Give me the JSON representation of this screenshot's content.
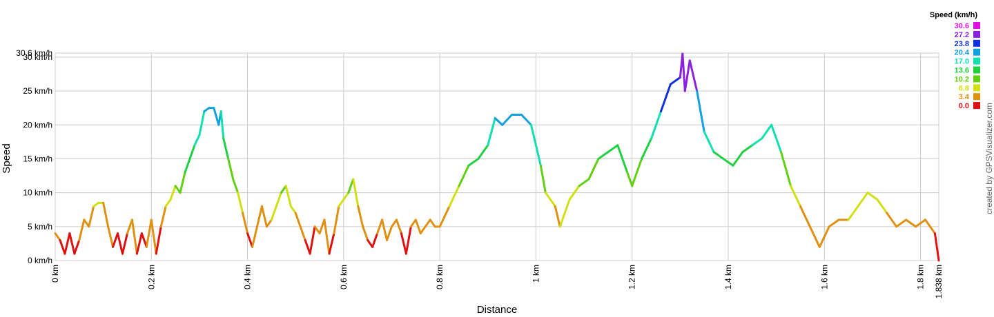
{
  "chart_data": {
    "type": "line",
    "x_label": "Distance",
    "y_label": "Speed",
    "credit": "created by GPSVisualizer.com",
    "legend_title": "Speed (km/h)",
    "legend": [
      {
        "value": 30.6,
        "color": "#e010e0"
      },
      {
        "value": 27.2,
        "color": "#8a20e0"
      },
      {
        "value": 23.8,
        "color": "#1030e0"
      },
      {
        "value": 20.4,
        "color": "#10a0e0"
      },
      {
        "value": 17.0,
        "label": "17.0",
        "color": "#10e0b0"
      },
      {
        "value": 13.6,
        "color": "#20d040"
      },
      {
        "value": 10.2,
        "color": "#60d010"
      },
      {
        "value": 6.8,
        "color": "#d0e010"
      },
      {
        "value": 3.4,
        "color": "#e09010"
      },
      {
        "value": 0.0,
        "label": "0.0",
        "color": "#e01010"
      }
    ],
    "xlim": [
      0,
      1.838
    ],
    "ylim": [
      0,
      30.6
    ],
    "xticks": [
      {
        "value": 0,
        "label": "0 km"
      },
      {
        "value": 0.2,
        "label": "0.2 km"
      },
      {
        "value": 0.4,
        "label": "0.4 km"
      },
      {
        "value": 0.6,
        "label": "0.6 km"
      },
      {
        "value": 0.8,
        "label": "0.8 km"
      },
      {
        "value": 1,
        "label": "1 km"
      },
      {
        "value": 1.2,
        "label": "1.2 km"
      },
      {
        "value": 1.4,
        "label": "1.4 km"
      },
      {
        "value": 1.6,
        "label": "1.6 km"
      },
      {
        "value": 1.8,
        "label": "1.8 km"
      },
      {
        "value": 1.838,
        "label": "1.838 km"
      }
    ],
    "yticks": [
      {
        "value": 0,
        "label": "0 km/h"
      },
      {
        "value": 5,
        "label": "5 km/h"
      },
      {
        "value": 10,
        "label": "10 km/h"
      },
      {
        "value": 15,
        "label": "15 km/h"
      },
      {
        "value": 20,
        "label": "20 km/h"
      },
      {
        "value": 25,
        "label": "25 km/h"
      },
      {
        "value": 30,
        "label": "30 km/h"
      },
      {
        "value": 30.6,
        "label": "30.6 km/h"
      }
    ],
    "grid": true,
    "x": [
      0,
      0.01,
      0.02,
      0.03,
      0.04,
      0.05,
      0.06,
      0.07,
      0.08,
      0.09,
      0.1,
      0.11,
      0.12,
      0.13,
      0.14,
      0.15,
      0.16,
      0.17,
      0.18,
      0.19,
      0.2,
      0.21,
      0.22,
      0.23,
      0.24,
      0.25,
      0.26,
      0.27,
      0.28,
      0.29,
      0.3,
      0.31,
      0.32,
      0.33,
      0.34,
      0.345,
      0.35,
      0.36,
      0.37,
      0.38,
      0.39,
      0.4,
      0.41,
      0.42,
      0.43,
      0.44,
      0.45,
      0.46,
      0.47,
      0.48,
      0.49,
      0.5,
      0.51,
      0.52,
      0.53,
      0.54,
      0.55,
      0.56,
      0.57,
      0.58,
      0.59,
      0.6,
      0.61,
      0.62,
      0.63,
      0.64,
      0.65,
      0.66,
      0.67,
      0.68,
      0.69,
      0.7,
      0.71,
      0.72,
      0.73,
      0.74,
      0.75,
      0.76,
      0.77,
      0.78,
      0.79,
      0.8,
      0.82,
      0.84,
      0.86,
      0.88,
      0.9,
      0.915,
      0.93,
      0.95,
      0.97,
      0.99,
      1.01,
      1.02,
      1.04,
      1.05,
      1.07,
      1.09,
      1.11,
      1.13,
      1.15,
      1.17,
      1.19,
      1.2,
      1.22,
      1.24,
      1.26,
      1.28,
      1.3,
      1.305,
      1.31,
      1.32,
      1.335,
      1.35,
      1.37,
      1.39,
      1.41,
      1.43,
      1.45,
      1.47,
      1.48,
      1.49,
      1.51,
      1.53,
      1.55,
      1.57,
      1.59,
      1.61,
      1.63,
      1.65,
      1.67,
      1.69,
      1.71,
      1.73,
      1.75,
      1.77,
      1.79,
      1.81,
      1.83,
      1.838
    ],
    "series": [
      {
        "name": "Speed",
        "values": [
          4,
          3,
          1,
          4,
          1,
          3,
          6,
          5,
          8,
          8.5,
          8.5,
          5,
          2,
          4,
          1,
          4,
          6,
          1,
          4,
          2,
          6,
          1,
          5,
          8,
          9,
          11,
          10,
          13,
          15,
          17,
          18.5,
          22,
          22.5,
          22.5,
          20,
          22,
          18,
          15,
          12,
          10,
          7,
          4,
          2,
          5,
          8,
          5,
          6,
          8,
          10,
          11,
          8,
          7,
          5,
          3,
          1,
          5,
          4,
          6,
          1,
          4,
          8,
          9,
          10,
          12,
          8,
          5,
          3,
          2,
          4,
          6,
          3,
          5,
          6,
          4,
          1,
          5,
          6,
          4,
          5,
          6,
          5,
          5,
          8,
          11,
          14,
          15,
          17,
          21,
          20,
          21.5,
          21.5,
          20,
          14,
          10,
          8,
          5,
          9,
          11,
          12,
          15,
          16,
          17,
          13,
          11,
          15,
          18,
          22,
          26,
          27,
          30.5,
          25,
          29.5,
          25,
          19,
          16,
          15,
          14,
          16,
          17,
          18,
          19,
          20,
          16,
          11,
          8,
          5,
          2,
          5,
          6,
          6,
          8,
          10,
          9,
          7,
          5,
          6,
          5,
          6,
          4,
          0
        ]
      }
    ]
  }
}
